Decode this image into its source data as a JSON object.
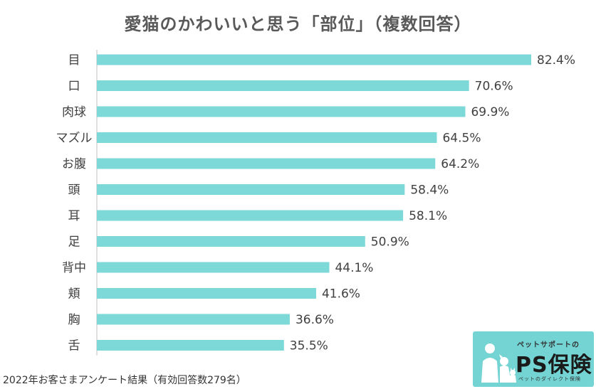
{
  "chart_data": {
    "type": "bar",
    "orientation": "horizontal",
    "title": "愛猫のかわいいと思う「部位」（複数回答）",
    "categories": [
      "目",
      "口",
      "肉球",
      "マズル",
      "お腹",
      "頭",
      "耳",
      "足",
      "背中",
      "頬",
      "胸",
      "舌"
    ],
    "values": [
      82.4,
      70.6,
      69.9,
      64.5,
      64.2,
      58.4,
      58.1,
      50.9,
      44.1,
      41.6,
      36.6,
      35.5
    ],
    "value_labels": [
      "82.4%",
      "70.6%",
      "69.9%",
      "64.5%",
      "64.2%",
      "58.4%",
      "58.1%",
      "50.9%",
      "44.1%",
      "41.6%",
      "36.6%",
      "35.5%"
    ],
    "xlim": [
      0,
      82.4
    ],
    "xlabel": "",
    "ylabel": "",
    "unit": "%",
    "grid": false,
    "bar_color": "#7dd8d8",
    "axis_color": "#bfbfbf"
  },
  "note": "2022年お客さまアンケート結果（有効回答数279名）",
  "logo": {
    "tagline": "ペットサポートの",
    "name": "PS保険",
    "sub": "ペットのダイレクト保険",
    "bg_color": "#74d3d3",
    "icon": "cat-dog-silhouette-icon"
  }
}
